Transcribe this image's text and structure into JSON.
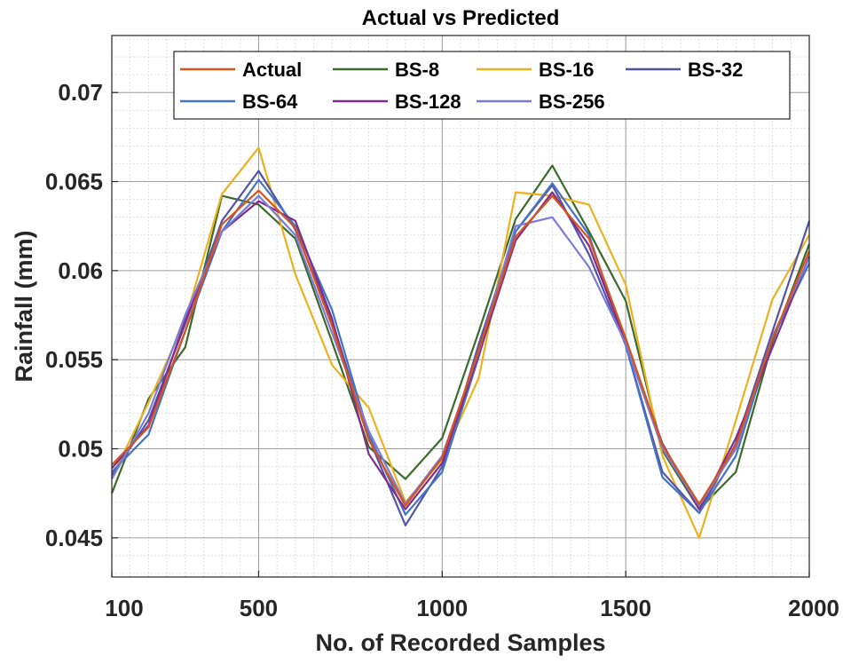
{
  "chart_data": {
    "type": "line",
    "title": "Actual vs Predicted",
    "xlabel": "No. of Recorded Samples",
    "ylabel": "Rainfall (mm)",
    "xlim": [
      100,
      2000
    ],
    "ylim": [
      0.0428,
      0.0732
    ],
    "xticks": [
      100,
      500,
      1000,
      1500,
      2000
    ],
    "xtick_labels": [
      "100",
      "500",
      "1000",
      "1500",
      "2000"
    ],
    "yticks": [
      0.045,
      0.05,
      0.055,
      0.06,
      0.065,
      0.07
    ],
    "ytick_labels": [
      "0.045",
      "0.05",
      "0.055",
      "0.06",
      "0.065",
      "0.07"
    ],
    "grid": true,
    "legend_position": "top",
    "x": [
      100,
      200,
      300,
      400,
      500,
      600,
      700,
      800,
      900,
      1000,
      1100,
      1200,
      1300,
      1400,
      1500,
      1600,
      1700,
      1800,
      1900,
      2000
    ],
    "series": [
      {
        "name": "Actual",
        "color": "#d95319",
        "values": [
          0.0491,
          0.0512,
          0.0566,
          0.0626,
          0.0645,
          0.0624,
          0.0569,
          0.0505,
          0.0468,
          0.0495,
          0.0556,
          0.0619,
          0.0642,
          0.0618,
          0.0562,
          0.0502,
          0.0469,
          0.0502,
          0.0562,
          0.0611
        ]
      },
      {
        "name": "BS-8",
        "color": "#3b6b2a",
        "values": [
          0.0475,
          0.0528,
          0.0557,
          0.0642,
          0.0637,
          0.0618,
          0.056,
          0.0501,
          0.0483,
          0.0506,
          0.0566,
          0.0629,
          0.0659,
          0.0622,
          0.0583,
          0.0499,
          0.0466,
          0.0487,
          0.056,
          0.0615
        ]
      },
      {
        "name": "BS-16",
        "color": "#edb120",
        "values": [
          0.0484,
          0.0526,
          0.0572,
          0.0643,
          0.0669,
          0.0598,
          0.0547,
          0.0523,
          0.047,
          0.0494,
          0.054,
          0.0644,
          0.0642,
          0.0637,
          0.0592,
          0.0496,
          0.045,
          0.0516,
          0.0584,
          0.062
        ]
      },
      {
        "name": "BS-32",
        "color": "#5354a8",
        "values": [
          0.0485,
          0.0516,
          0.057,
          0.0628,
          0.0656,
          0.0623,
          0.0572,
          0.0506,
          0.0457,
          0.049,
          0.0559,
          0.0622,
          0.0648,
          0.0609,
          0.0558,
          0.0487,
          0.0464,
          0.0503,
          0.0566,
          0.0628
        ]
      },
      {
        "name": "BS-64",
        "color": "#4472c4",
        "values": [
          0.0487,
          0.0508,
          0.0566,
          0.0622,
          0.0651,
          0.0625,
          0.0578,
          0.0508,
          0.0463,
          0.0487,
          0.0552,
          0.0622,
          0.0649,
          0.062,
          0.0558,
          0.0484,
          0.0464,
          0.0496,
          0.0562,
          0.0604
        ]
      },
      {
        "name": "BS-128",
        "color": "#7e2f8e",
        "values": [
          0.0489,
          0.0513,
          0.0572,
          0.0622,
          0.0639,
          0.0628,
          0.0573,
          0.0497,
          0.0466,
          0.0492,
          0.0553,
          0.0617,
          0.0644,
          0.0614,
          0.056,
          0.0503,
          0.0466,
          0.0506,
          0.0557,
          0.0608
        ]
      },
      {
        "name": "BS-256",
        "color": "#7b7bd6",
        "values": [
          0.0483,
          0.052,
          0.0575,
          0.0622,
          0.0642,
          0.062,
          0.0565,
          0.051,
          0.0469,
          0.0496,
          0.0555,
          0.0625,
          0.063,
          0.0602,
          0.0559,
          0.05,
          0.0468,
          0.05,
          0.0563,
          0.0607
        ]
      }
    ]
  }
}
